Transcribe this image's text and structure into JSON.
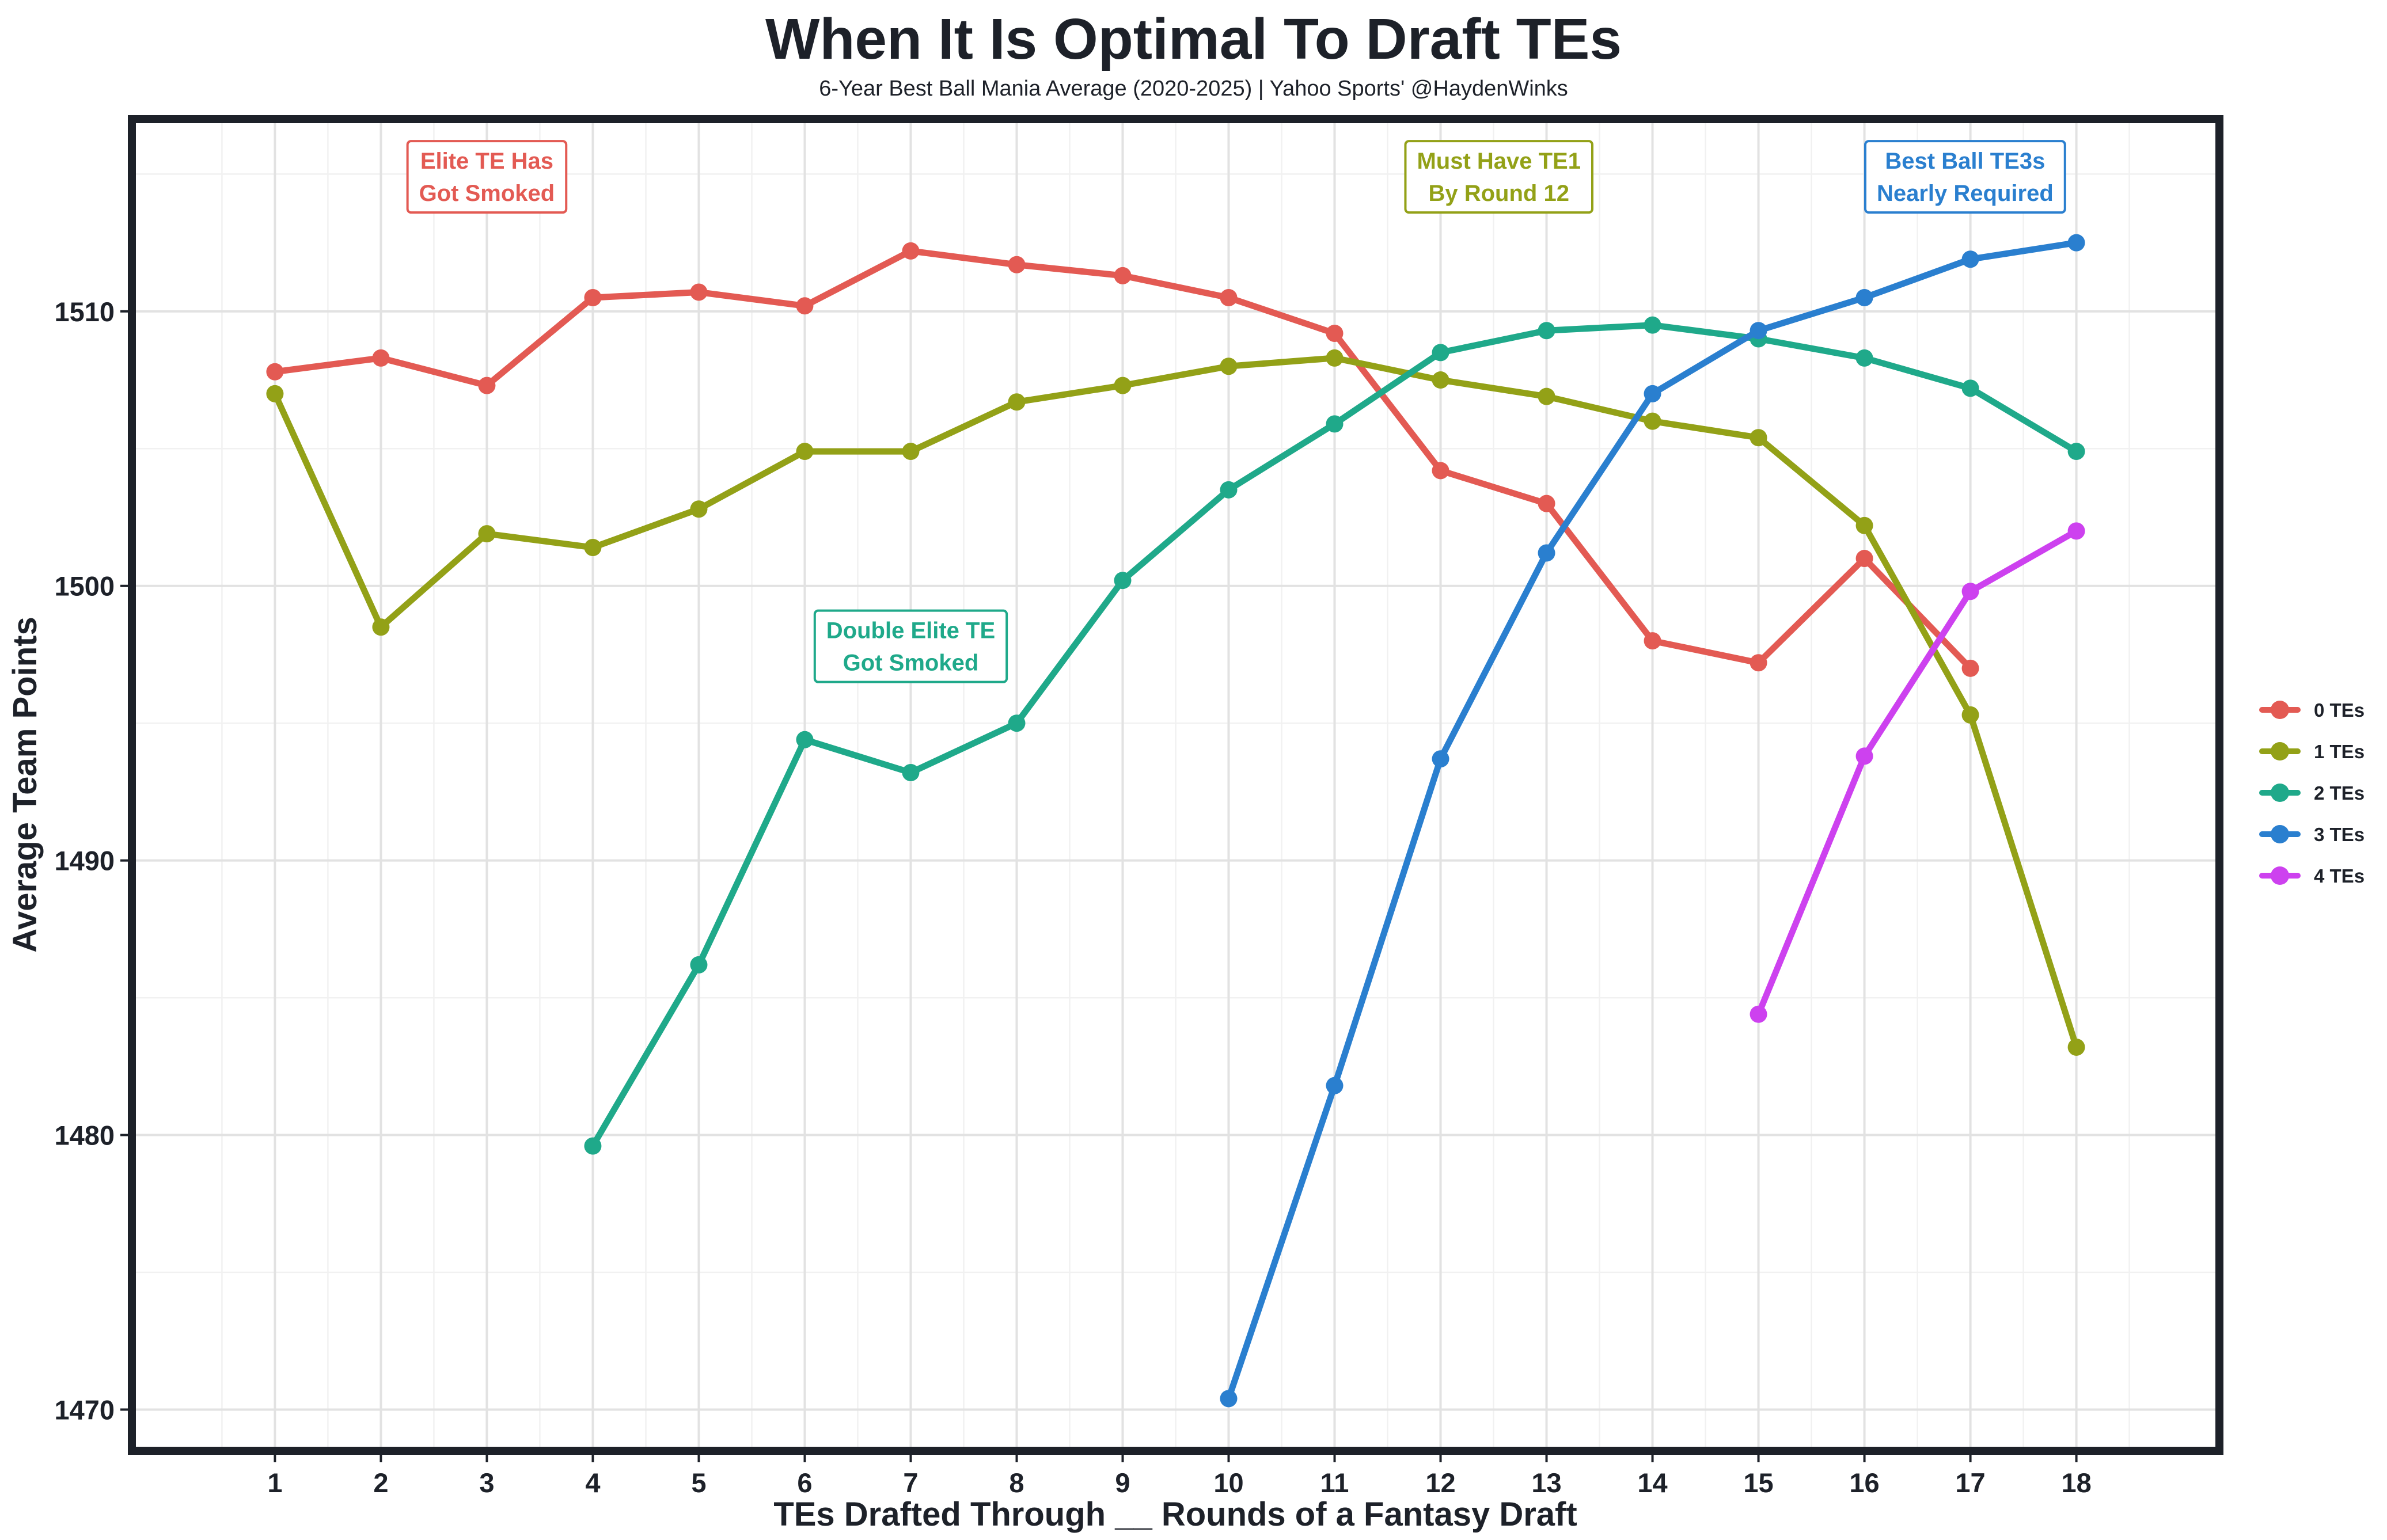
{
  "chart_data": {
    "type": "line",
    "title": "When It Is Optimal To Draft TEs",
    "subtitle": "6-Year Best Ball Mania Average (2020-2025) | Yahoo Sports' @HaydenWinks",
    "xlabel": "TEs Drafted Through __ Rounds of a Fantasy Draft",
    "ylabel": "Average Team Points",
    "x": [
      1,
      2,
      3,
      4,
      5,
      6,
      7,
      8,
      9,
      10,
      11,
      12,
      13,
      14,
      15,
      16,
      17,
      18
    ],
    "xlim": [
      -0.35,
      19.35
    ],
    "ylim": [
      1468.5,
      1517
    ],
    "y_ticks": [
      1470,
      1480,
      1490,
      1500,
      1510
    ],
    "grid": true,
    "legend_position": "right",
    "series": [
      {
        "name": "0 TEs",
        "color": "#e35a53",
        "x": [
          1,
          2,
          3,
          4,
          5,
          6,
          7,
          8,
          9,
          10,
          11,
          12,
          13,
          14,
          15,
          16,
          17
        ],
        "values": [
          1507.8,
          1508.3,
          1507.3,
          1510.5,
          1510.7,
          1510.2,
          1512.2,
          1511.7,
          1511.3,
          1510.5,
          1509.2,
          1504.2,
          1503.0,
          1498.0,
          1497.2,
          1501.0,
          1497.0
        ]
      },
      {
        "name": "1 TEs",
        "color": "#93a117",
        "x": [
          1,
          2,
          3,
          4,
          5,
          6,
          7,
          8,
          9,
          10,
          11,
          12,
          13,
          14,
          15,
          16,
          17,
          18
        ],
        "values": [
          1507.0,
          1498.5,
          1501.9,
          1501.4,
          1502.8,
          1504.9,
          1504.9,
          1506.7,
          1507.3,
          1508.0,
          1508.3,
          1507.5,
          1506.9,
          1506.0,
          1505.4,
          1502.2,
          1495.3,
          1483.2
        ]
      },
      {
        "name": "2 TEs",
        "color": "#1fa98a",
        "x": [
          4,
          5,
          6,
          7,
          8,
          9,
          10,
          11,
          12,
          13,
          14,
          15,
          16,
          17,
          18
        ],
        "values": [
          1479.6,
          1486.2,
          1494.4,
          1493.2,
          1495.0,
          1500.2,
          1503.5,
          1505.9,
          1508.5,
          1509.3,
          1509.5,
          1509.0,
          1508.3,
          1507.2,
          1504.9
        ]
      },
      {
        "name": "3 TEs",
        "color": "#2a7fcf",
        "x": [
          10,
          11,
          12,
          13,
          14,
          15,
          16,
          17,
          18
        ],
        "values": [
          1470.4,
          1481.8,
          1493.7,
          1501.2,
          1507.0,
          1509.3,
          1510.5,
          1511.9,
          1512.5
        ]
      },
      {
        "name": "4 TEs",
        "color": "#cd41ef",
        "x": [
          15,
          16,
          17,
          18
        ],
        "values": [
          1484.4,
          1493.8,
          1499.8,
          1502.0
        ]
      }
    ],
    "annotations": [
      {
        "lines": [
          "Elite TE Has",
          "Got Smoked"
        ],
        "x": 3.0,
        "y": 1514.9,
        "color": "#e35a53"
      },
      {
        "lines": [
          "Must Have TE1",
          "By Round 12"
        ],
        "x": 12.55,
        "y": 1514.9,
        "color": "#93a117"
      },
      {
        "lines": [
          "Best Ball TE3s",
          "Nearly Required"
        ],
        "x": 16.95,
        "y": 1514.9,
        "color": "#2a7fcf"
      },
      {
        "lines": [
          "Double Elite TE",
          "Got Smoked"
        ],
        "x": 7.0,
        "y": 1497.8,
        "color": "#1fa98a"
      }
    ]
  }
}
